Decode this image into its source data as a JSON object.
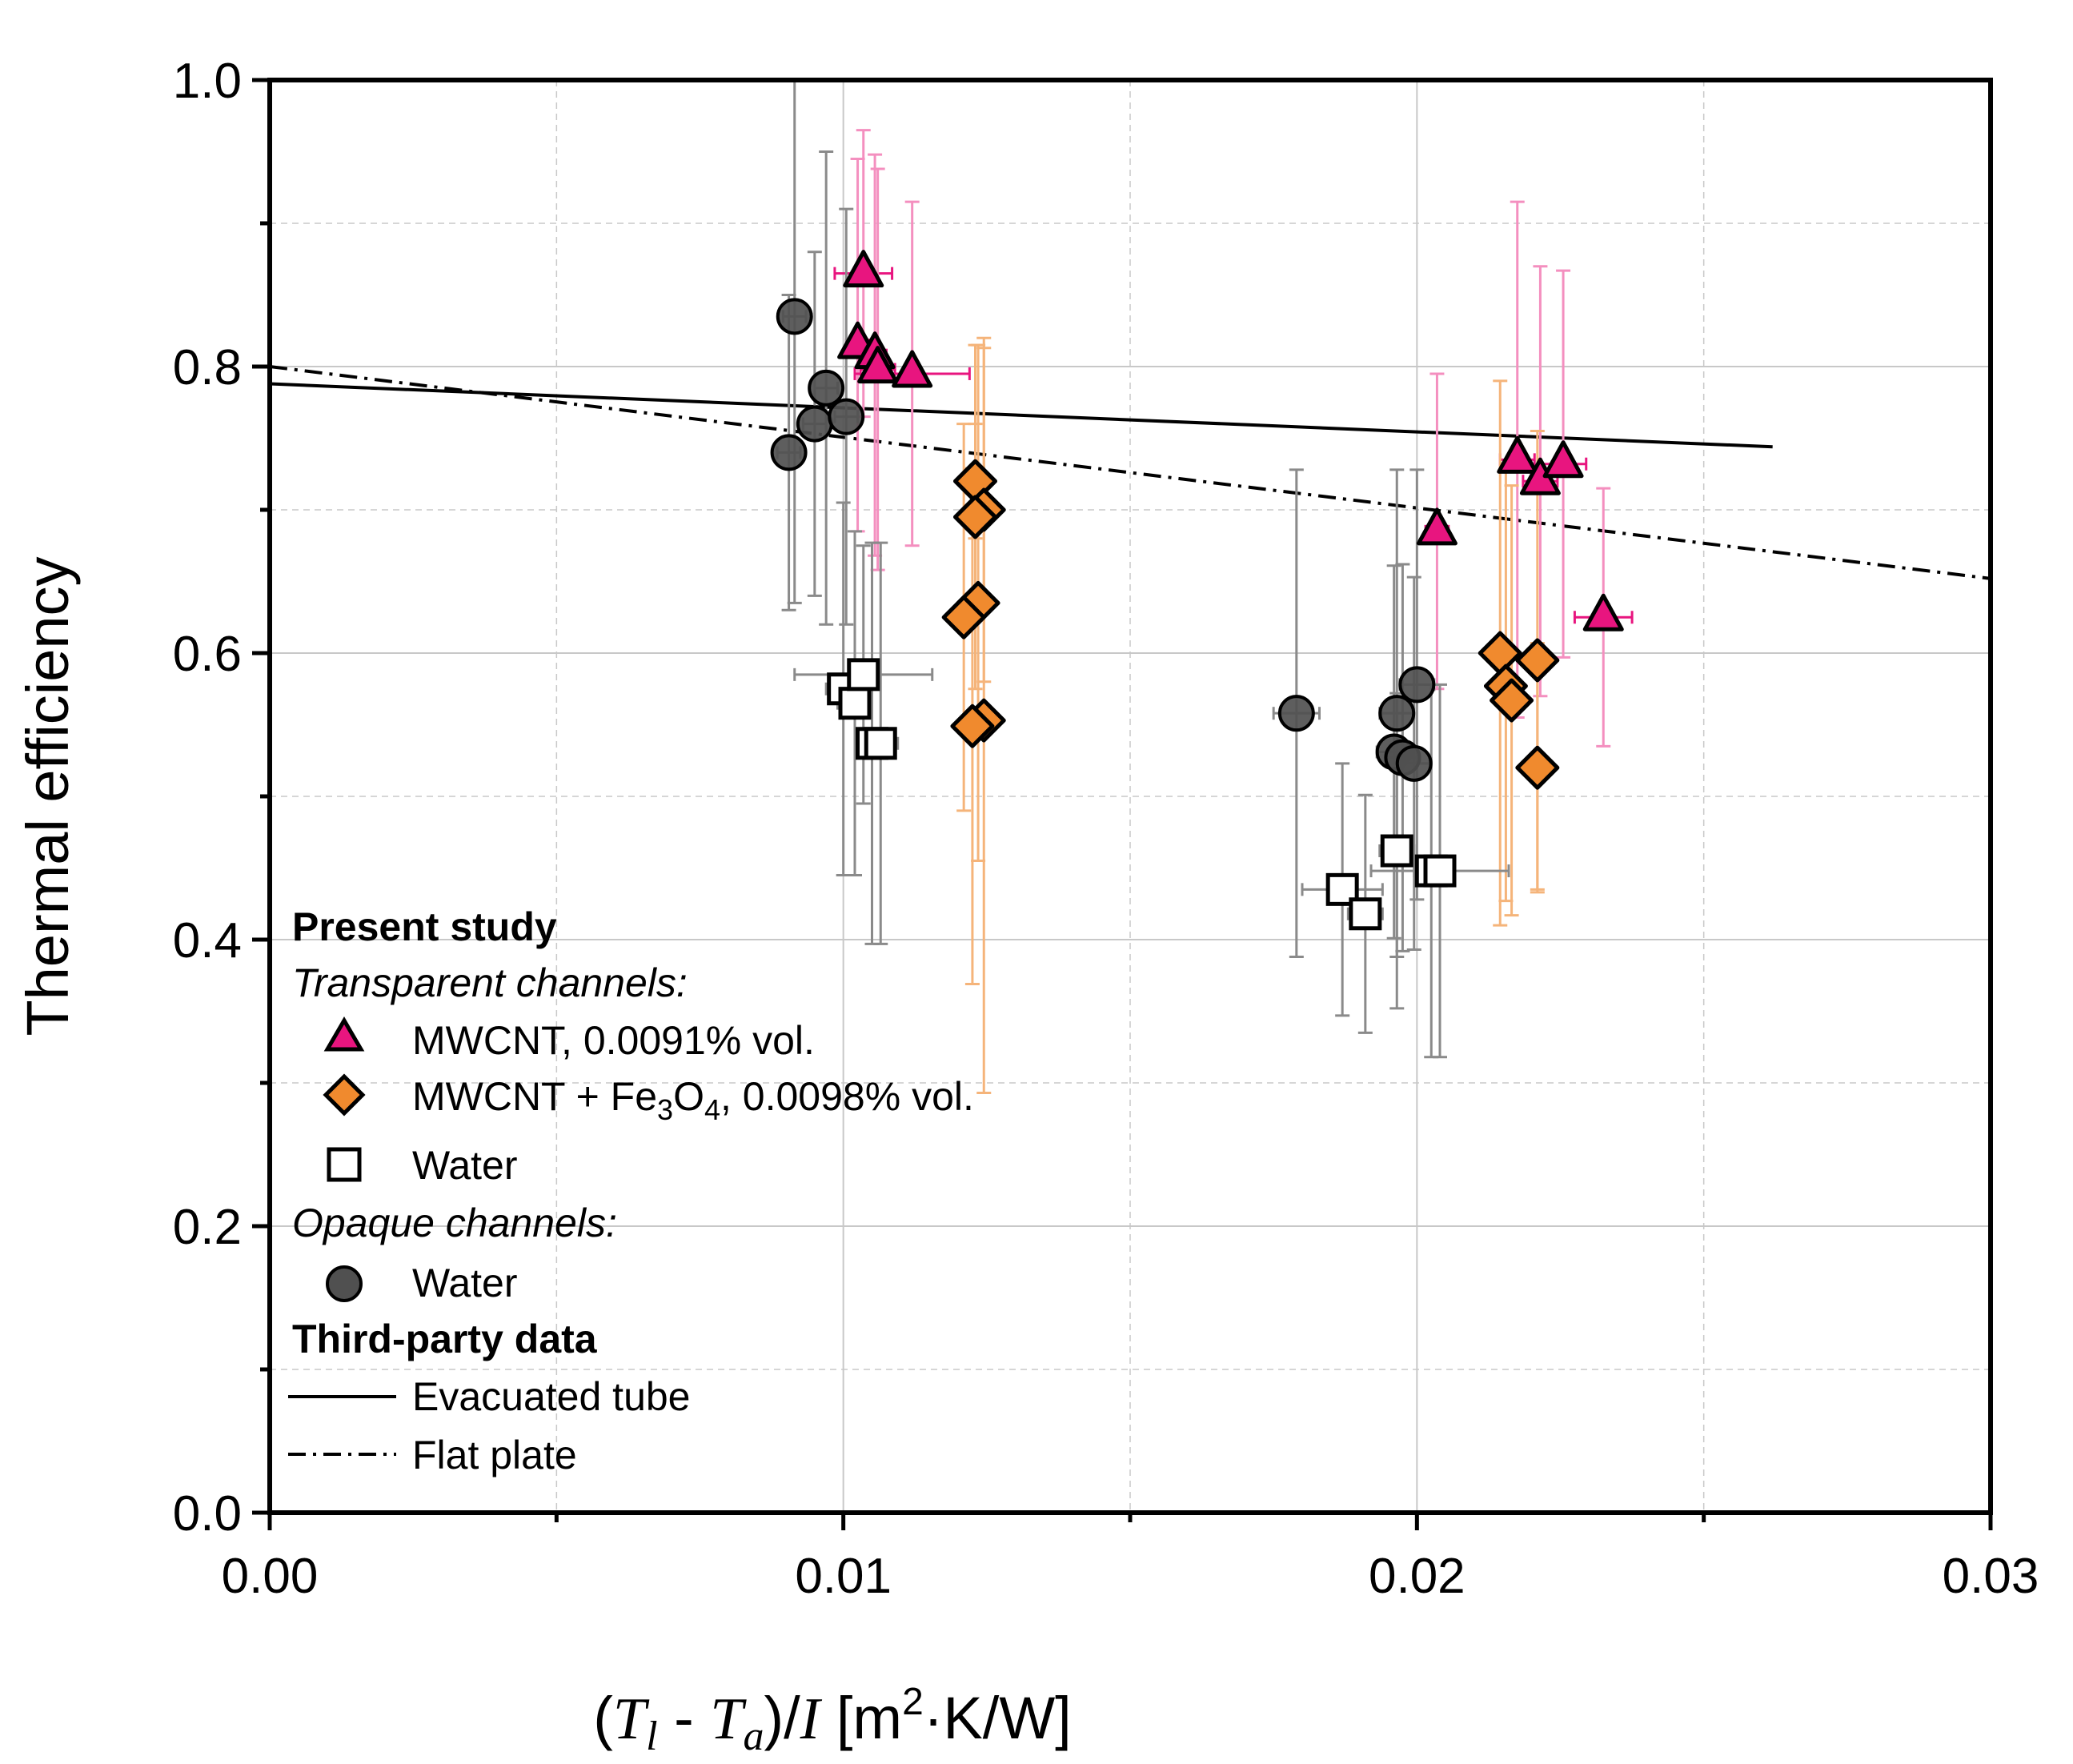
{
  "chart_data": {
    "type": "scatter",
    "xlabel_parts": {
      "open": "(",
      "T1": "T",
      "T1_sub": "l",
      "dash": " - ",
      "T2": "T",
      "T2_sub": "a",
      "close_div": ")/",
      "I": "I",
      "unit_open": " [m",
      "unit_sup": "2",
      "unit_rest": "·K/W]"
    },
    "ylabel": "Thermal efficiency",
    "xlim": [
      0,
      0.03
    ],
    "ylim": [
      0,
      1.0
    ],
    "x_ticks": [
      "0.00",
      "0.01",
      "0.02",
      "0.03"
    ],
    "y_ticks": [
      "0.0",
      "0.2",
      "0.4",
      "0.6",
      "0.8",
      "1.0"
    ],
    "grid": true,
    "legend_position": "lower-left",
    "legend": {
      "present_study": "Present study",
      "transparent": "Transparent channels:",
      "mwcnt": "MWCNT, 0.0091% vol.",
      "hybrid_a": "MWCNT + Fe",
      "hybrid_sub1": "3",
      "hybrid_b": "O",
      "hybrid_sub2": "4",
      "hybrid_c": ", 0.0098% vol.",
      "water_t": "Water",
      "opaque": "Opaque channels:",
      "water_o": "Water",
      "third_party": "Third-party data",
      "evacuated": "Evacuated tube",
      "flat": "Flat plate"
    },
    "colors": {
      "mwcnt": "#e8157f",
      "mwcnt_err": "#f48fbf",
      "hybrid": "#f08a2e",
      "hybrid_err": "#f5b47a",
      "water_t": "#ffffff",
      "water_o": "#505050",
      "water_o_err": "#8a8a8a"
    },
    "series": [
      {
        "key": "mwcnt",
        "marker": "triangle",
        "points": [
          {
            "x": 0.01035,
            "y": 0.865,
            "ey": 0.1,
            "ex": 0.0005
          },
          {
            "x": 0.01025,
            "y": 0.815,
            "ey": 0.13,
            "ex": 0.0002
          },
          {
            "x": 0.01055,
            "y": 0.808,
            "ey": 0.14,
            "ex": 0.0002
          },
          {
            "x": 0.0106,
            "y": 0.798,
            "ey": 0.14,
            "ex": 0.0003
          },
          {
            "x": 0.0112,
            "y": 0.795,
            "ey": 0.12,
            "ex": 0.001
          },
          {
            "x": 0.02175,
            "y": 0.735,
            "ey": 0.18,
            "ex": 0.0003
          },
          {
            "x": 0.02215,
            "y": 0.72,
            "ey": 0.15,
            "ex": 0.0003
          },
          {
            "x": 0.02255,
            "y": 0.732,
            "ey": 0.135,
            "ex": 0.0004
          },
          {
            "x": 0.02035,
            "y": 0.685,
            "ey": 0.11,
            "ex": 0.0002
          },
          {
            "x": 0.02325,
            "y": 0.625,
            "ey": 0.09,
            "ex": 0.0005
          }
        ]
      },
      {
        "key": "hybrid",
        "marker": "diamond",
        "points": [
          {
            "x": 0.0123,
            "y": 0.72,
            "ey": 0.04,
            "ex": 0.0002
          },
          {
            "x": 0.01245,
            "y": 0.7,
            "ey": 0.12,
            "ex": 0.0002
          },
          {
            "x": 0.0123,
            "y": 0.695,
            "ey": 0.12,
            "ex": 0.0002
          },
          {
            "x": 0.01235,
            "y": 0.635,
            "ey": 0.18,
            "ex": 0.0002
          },
          {
            "x": 0.0121,
            "y": 0.625,
            "ey": 0.135,
            "ex": 0.0002
          },
          {
            "x": 0.01245,
            "y": 0.553,
            "ey": 0.26,
            "ex": 0.0002
          },
          {
            "x": 0.01225,
            "y": 0.549,
            "ey": 0.18,
            "ex": 0.0002
          },
          {
            "x": 0.02145,
            "y": 0.6,
            "ey": 0.19,
            "ex": 0.0002
          },
          {
            "x": 0.0221,
            "y": 0.595,
            "ey": 0.16,
            "ex": 0.0002
          },
          {
            "x": 0.02155,
            "y": 0.577,
            "ey": 0.15,
            "ex": 0.0002
          },
          {
            "x": 0.02165,
            "y": 0.567,
            "ey": 0.15,
            "ex": 0.0002
          },
          {
            "x": 0.0221,
            "y": 0.52,
            "ey": 0.087,
            "ex": 0.0002
          }
        ]
      },
      {
        "key": "water_t",
        "marker": "square",
        "points": [
          {
            "x": 0.01,
            "y": 0.575,
            "ey": 0.13,
            "ex": 0.0003
          },
          {
            "x": 0.0102,
            "y": 0.565,
            "ey": 0.12,
            "ex": 0.0003
          },
          {
            "x": 0.01035,
            "y": 0.585,
            "ey": 0.09,
            "ex": 0.0012
          },
          {
            "x": 0.0105,
            "y": 0.537,
            "ey": 0.14,
            "ex": 0.0003
          },
          {
            "x": 0.01065,
            "y": 0.537,
            "ey": 0.14,
            "ex": 0.0003
          },
          {
            "x": 0.0187,
            "y": 0.435,
            "ey": 0.088,
            "ex": 0.0007
          },
          {
            "x": 0.0191,
            "y": 0.418,
            "ey": 0.083,
            "ex": 0.0003
          },
          {
            "x": 0.01965,
            "y": 0.462,
            "ey": 0.11,
            "ex": 0.0003
          },
          {
            "x": 0.02025,
            "y": 0.448,
            "ey": 0.13,
            "ex": 0.0003
          },
          {
            "x": 0.0204,
            "y": 0.448,
            "ey": 0.13,
            "ex": 0.0012
          }
        ]
      },
      {
        "key": "water_o",
        "marker": "circle",
        "points": [
          {
            "x": 0.00915,
            "y": 0.835,
            "ey": 0.2,
            "ex": 0.0002
          },
          {
            "x": 0.00905,
            "y": 0.74,
            "ey": 0.11,
            "ex": 0.0002
          },
          {
            "x": 0.0095,
            "y": 0.76,
            "ey": 0.12,
            "ex": 0.0002
          },
          {
            "x": 0.0097,
            "y": 0.785,
            "ey": 0.165,
            "ex": 0.0002
          },
          {
            "x": 0.01005,
            "y": 0.765,
            "ey": 0.145,
            "ex": 0.0002
          },
          {
            "x": 0.0179,
            "y": 0.558,
            "ey": 0.17,
            "ex": 0.0004
          },
          {
            "x": 0.01965,
            "y": 0.558,
            "ey": 0.17,
            "ex": 0.0003
          },
          {
            "x": 0.0196,
            "y": 0.531,
            "ey": 0.13,
            "ex": 0.0003
          },
          {
            "x": 0.01975,
            "y": 0.527,
            "ey": 0.135,
            "ex": 0.0003
          },
          {
            "x": 0.02,
            "y": 0.578,
            "ey": 0.15,
            "ex": 0.0003
          },
          {
            "x": 0.01995,
            "y": 0.523,
            "ey": 0.13,
            "ex": 0.0003
          }
        ]
      }
    ],
    "lines": [
      {
        "key": "evacuated",
        "style": "solid",
        "x": [
          0,
          0.0262
        ],
        "y": [
          0.788,
          0.744
        ]
      },
      {
        "key": "flat",
        "style": "dashdot",
        "x": [
          0,
          0.03
        ],
        "y": [
          0.8,
          0.652
        ]
      }
    ]
  }
}
